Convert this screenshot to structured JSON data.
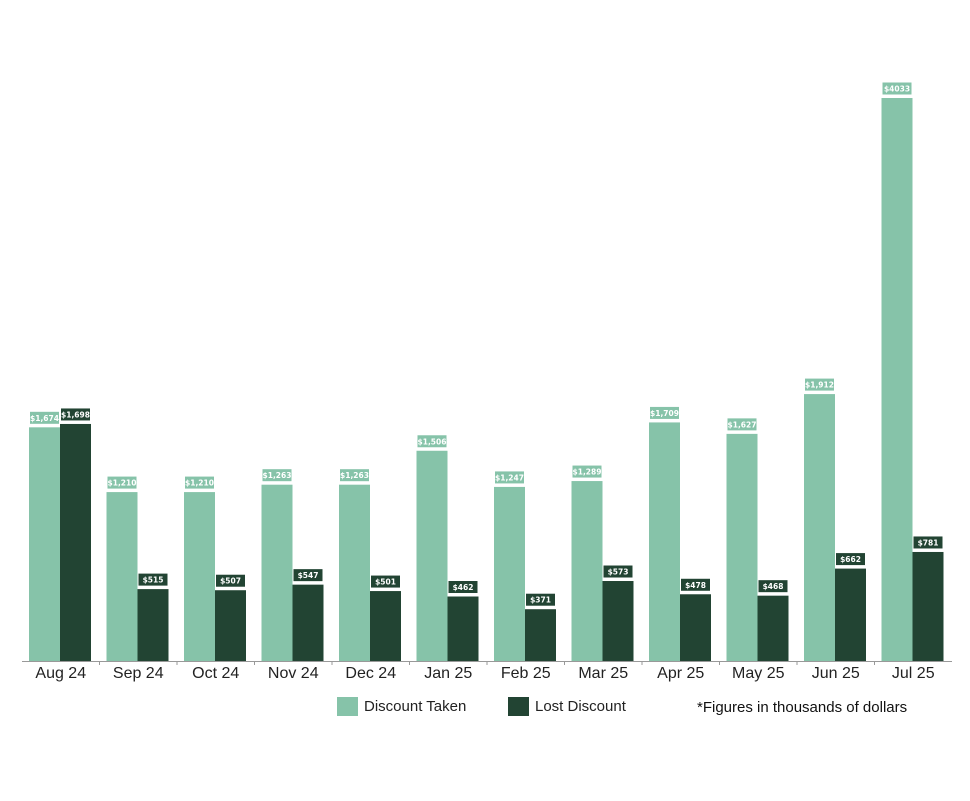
{
  "colors": {
    "discount_taken": "#86c3a9",
    "lost_discount": "#224433",
    "axis": "#999999",
    "label_text_light": "#ffffff"
  },
  "note": "*Figures in thousands of dollars",
  "chart_data": {
    "type": "bar",
    "title": "",
    "xlabel": "",
    "ylabel": "",
    "ylim": [
      0,
      4200
    ],
    "grid": false,
    "legend_placement": "bottom",
    "categories": [
      "Aug 24",
      "Sep 24",
      "Oct 24",
      "Nov 24",
      "Dec 24",
      "Jan 25",
      "Feb 25",
      "Mar 25",
      "Apr 25",
      "May 25",
      "Jun 25",
      "Jul 25"
    ],
    "series": [
      {
        "name": "Discount Taken",
        "color": "#86c3a9",
        "values": [
          1674,
          1210,
          1210,
          1263,
          1263,
          1506,
          1247,
          1289,
          1709,
          1627,
          1912,
          4033
        ],
        "labels": [
          "$1,674",
          "$1,210",
          "$1,210",
          "$1,263",
          "$1,263",
          "$1,506",
          "$1,247",
          "$1,289",
          "$1,709",
          "$1,627",
          "$1,912",
          "$4033"
        ]
      },
      {
        "name": "Lost Discount",
        "color": "#224433",
        "values": [
          1698,
          515,
          507,
          547,
          501,
          462,
          371,
          573,
          478,
          468,
          662,
          781
        ],
        "labels": [
          "$1,698",
          "$515",
          "$507",
          "$547",
          "$501",
          "$462",
          "$371",
          "$573",
          "$478",
          "$468",
          "$662",
          "$781"
        ]
      }
    ]
  }
}
